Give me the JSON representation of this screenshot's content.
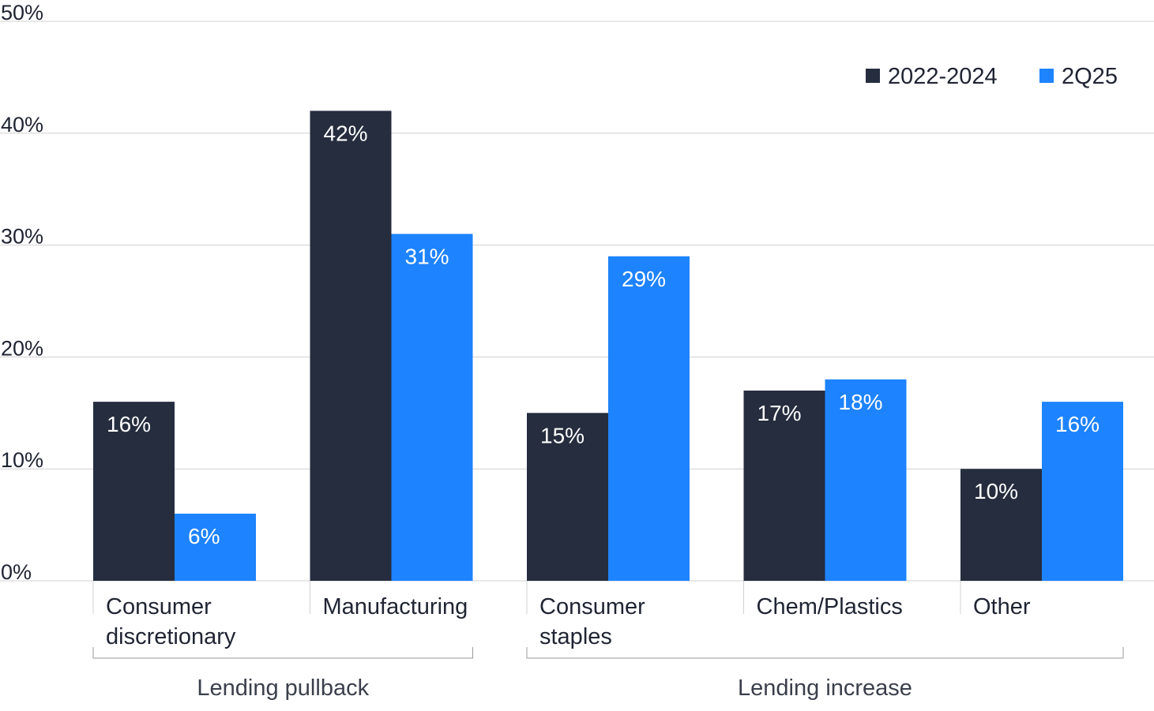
{
  "chart_data": {
    "type": "bar",
    "categories": [
      [
        "Consumer",
        "discretionary"
      ],
      [
        "Manufacturing"
      ],
      [
        "Consumer",
        "staples"
      ],
      [
        "Chem/Plastics"
      ],
      [
        "Other"
      ]
    ],
    "series": [
      {
        "name": "2022-2024",
        "values": [
          16,
          42,
          15,
          17,
          10
        ],
        "labels": [
          "16%",
          "42%",
          "15%",
          "17%",
          "10%"
        ],
        "color": "#252d3e"
      },
      {
        "name": "2Q25",
        "values": [
          6,
          31,
          29,
          18,
          16
        ],
        "labels": [
          "6%",
          "31%",
          "29%",
          "18%",
          "16%"
        ],
        "color": "#1e83ff"
      }
    ],
    "ylim": [
      0,
      50
    ],
    "yticks": [
      0,
      10,
      20,
      30,
      40,
      50
    ],
    "ytick_labels": [
      "0%",
      "10%",
      "20%",
      "30%",
      "40%",
      "50%"
    ],
    "groups": [
      {
        "label": "Lending pullback",
        "categories": [
          0,
          1
        ]
      },
      {
        "label": "Lending increase",
        "categories": [
          2,
          4
        ]
      }
    ],
    "grid": true,
    "legend_position": "top-right",
    "title": "",
    "xlabel": "",
    "ylabel": ""
  }
}
